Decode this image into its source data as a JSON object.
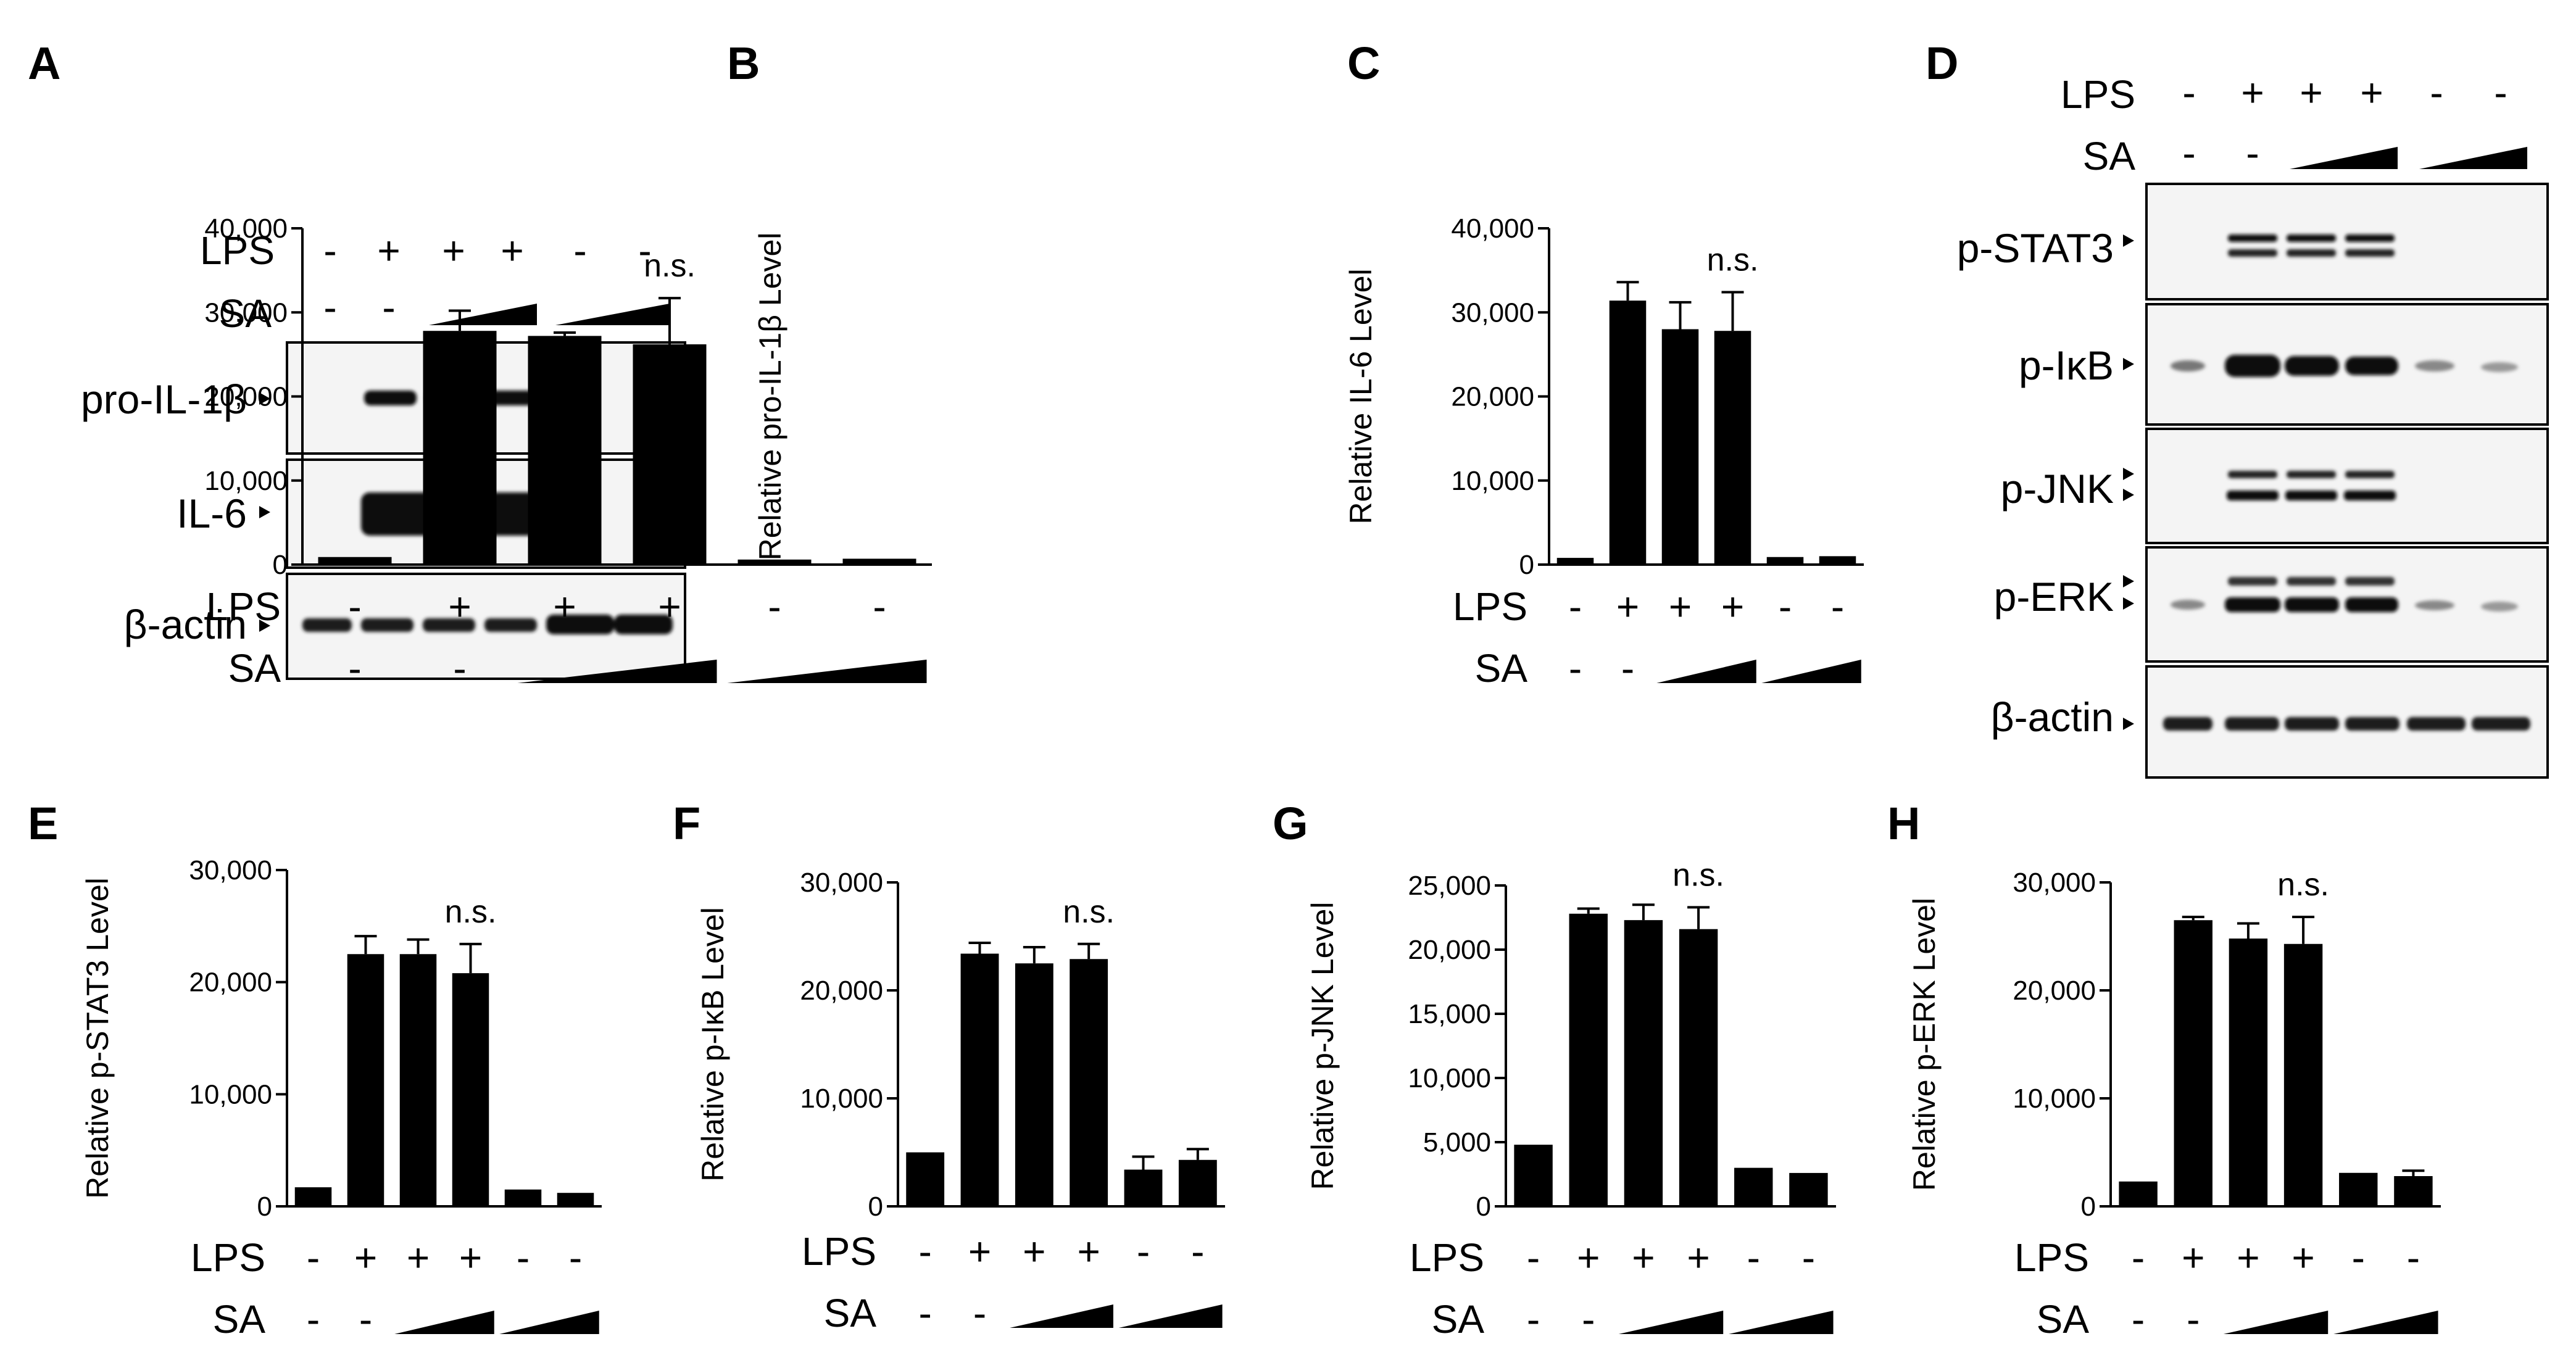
{
  "figure": {
    "panel_letters": [
      "A",
      "B",
      "C",
      "D",
      "E",
      "F",
      "G",
      "H"
    ],
    "conditions": {
      "lps_label": "LPS",
      "sa_label": "SA",
      "lps": [
        "-",
        "+",
        "+",
        "+",
        "-",
        "-"
      ],
      "sa": [
        "-",
        "-",
        "ramp",
        "ramp",
        "ramp",
        "ramp"
      ]
    },
    "significance_label": "n.s.",
    "blot_A": {
      "proteins": [
        "pro-IL-1β",
        "IL-6",
        "β-actin"
      ]
    },
    "blot_D": {
      "proteins": [
        "p-STAT3",
        "p-IκB",
        "p-JNK",
        "p-ERK",
        "β-actin"
      ]
    }
  },
  "chart_data": [
    {
      "panel": "B",
      "type": "bar",
      "ylabel": "Relative pro-IL-1β Level",
      "ylim": [
        0,
        40000
      ],
      "yticks": [
        "0",
        "10,000",
        "20,000",
        "30,000",
        "40,000"
      ],
      "ytick_values": [
        0,
        10000,
        20000,
        30000,
        40000
      ],
      "values": [
        900,
        27800,
        27200,
        26200,
        600,
        700
      ],
      "errors": [
        0,
        2400,
        400,
        5500,
        0,
        0
      ],
      "annotation": "n.s.",
      "annotation_bar": 3
    },
    {
      "panel": "C",
      "type": "bar",
      "ylabel": "Relative IL-6 Level",
      "ylim": [
        0,
        40000
      ],
      "yticks": [
        "0",
        "10,000",
        "20,000",
        "30,000",
        "40,000"
      ],
      "ytick_values": [
        0,
        10000,
        20000,
        30000,
        40000
      ],
      "values": [
        800,
        31400,
        28000,
        27800,
        900,
        1000
      ],
      "errors": [
        0,
        2200,
        3200,
        4600,
        0,
        0
      ],
      "annotation": "n.s.",
      "annotation_bar": 3
    },
    {
      "panel": "E",
      "type": "bar",
      "ylabel": "Relative p-STAT3 Level",
      "ylim": [
        0,
        30000
      ],
      "yticks": [
        "0",
        "10,000",
        "20,000",
        "30,000"
      ],
      "ytick_values": [
        0,
        10000,
        20000,
        30000
      ],
      "values": [
        1700,
        22500,
        22500,
        20800,
        1500,
        1200
      ],
      "errors": [
        0,
        1600,
        1300,
        2600,
        0,
        0
      ],
      "annotation": "n.s.",
      "annotation_bar": 3
    },
    {
      "panel": "F",
      "type": "bar",
      "ylabel": "Relative p-IκB Level",
      "ylim": [
        0,
        30000
      ],
      "yticks": [
        "0",
        "10,000",
        "20,000",
        "30,000"
      ],
      "ytick_values": [
        0,
        10000,
        20000,
        30000
      ],
      "values": [
        5000,
        23400,
        22500,
        22900,
        3400,
        4300
      ],
      "errors": [
        0,
        1000,
        1500,
        1400,
        1200,
        1000
      ],
      "annotation": "n.s.",
      "annotation_bar": 3
    },
    {
      "panel": "G",
      "type": "bar",
      "ylabel": "Relative p-JNK Level",
      "ylim": [
        0,
        25000
      ],
      "yticks": [
        "0",
        "5,000",
        "10,000",
        "15,000",
        "20,000",
        "25,000"
      ],
      "ytick_values": [
        0,
        5000,
        10000,
        15000,
        20000,
        25000
      ],
      "values": [
        4800,
        22800,
        22300,
        21600,
        3000,
        2600
      ],
      "errors": [
        0,
        400,
        1200,
        1700,
        0,
        0
      ],
      "annotation": "n.s.",
      "annotation_bar": 3
    },
    {
      "panel": "H",
      "type": "bar",
      "ylabel": "Relative p-ERK Level",
      "ylim": [
        0,
        30000
      ],
      "yticks": [
        "0",
        "10,000",
        "20,000",
        "30,000"
      ],
      "ytick_values": [
        0,
        10000,
        20000,
        30000
      ],
      "values": [
        2300,
        26500,
        24800,
        24300,
        3100,
        2800
      ],
      "errors": [
        0,
        300,
        1400,
        2500,
        0,
        500
      ],
      "annotation": "n.s.",
      "annotation_bar": 3
    }
  ]
}
